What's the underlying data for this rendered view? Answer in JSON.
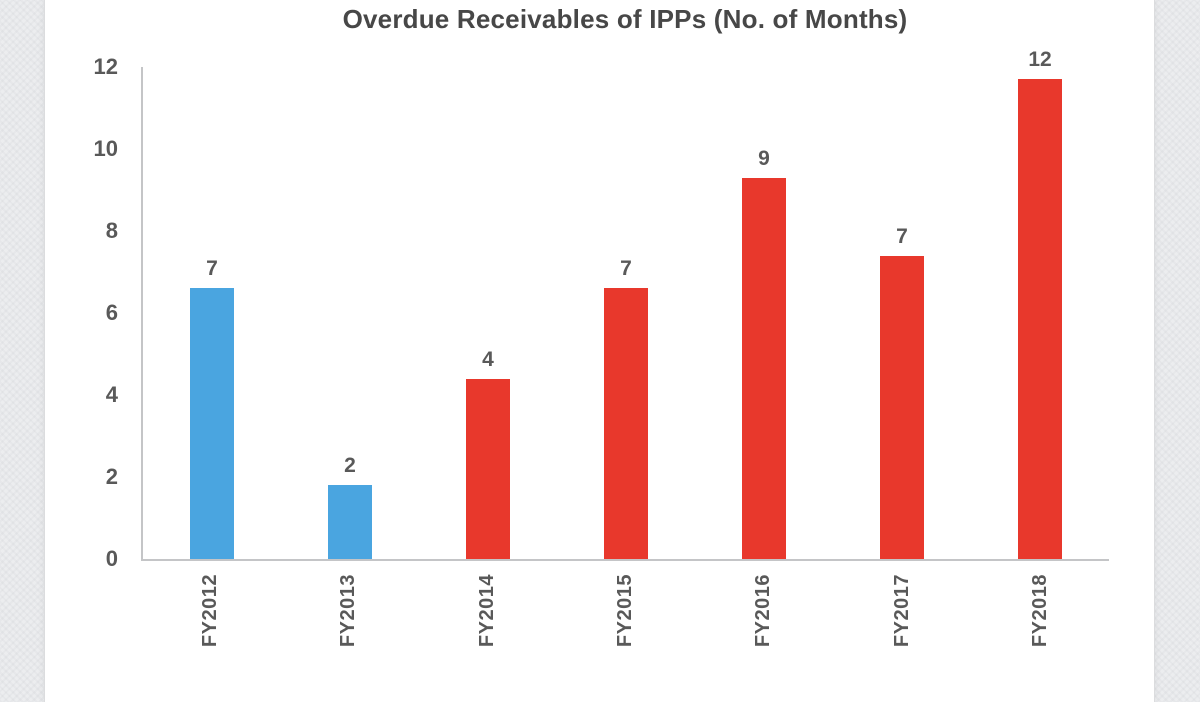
{
  "page": {
    "background_color": "#ECEDEF",
    "panel_color": "#FFFFFF"
  },
  "chart_data": {
    "type": "bar",
    "title": "Overdue Receivables of IPPs (No. of Months)",
    "categories": [
      "FY2012",
      "FY2013",
      "FY2014",
      "FY2015",
      "FY2016",
      "FY2017",
      "FY2018"
    ],
    "data_labels": [
      "7",
      "2",
      "4",
      "7",
      "9",
      "7",
      "12"
    ],
    "values": [
      7,
      2,
      4,
      7,
      9,
      7,
      12
    ],
    "values_visual_estimate": [
      6.6,
      1.8,
      4.4,
      6.6,
      9.3,
      7.4,
      11.7
    ],
    "bar_colors": [
      "#4AA5E0",
      "#4AA5E0",
      "#E8382C",
      "#E8382C",
      "#E8382C",
      "#E8382C",
      "#E8382C"
    ],
    "y_ticks": [
      0,
      2,
      4,
      6,
      8,
      10,
      12
    ],
    "ylim": [
      0,
      12
    ],
    "xlabel": "",
    "ylabel": "",
    "grid": false,
    "legend": false,
    "x_label_rotation_degrees": 90,
    "colors": {
      "blue_series": "#4AA5E0",
      "red_series": "#E8382C",
      "label_text": "#595959",
      "title_text": "#474747",
      "axis_line": "#C4C5C7"
    }
  }
}
